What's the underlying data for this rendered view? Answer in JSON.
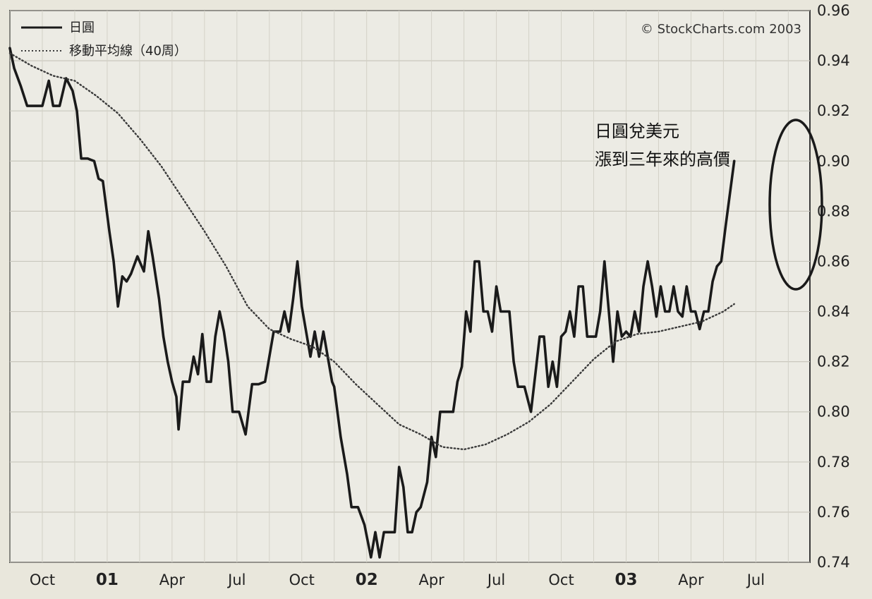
{
  "chart_data": {
    "type": "line",
    "copyright": "© StockCharts.com 2003",
    "ylim": [
      0.74,
      0.96
    ],
    "y_ticks": [
      "0.96",
      "0.94",
      "0.92",
      "0.90",
      "0.88",
      "0.86",
      "0.84",
      "0.82",
      "0.80",
      "0.78",
      "0.76",
      "0.74"
    ],
    "x_ticks": [
      {
        "label": "Oct",
        "x": 1.5,
        "bold": false
      },
      {
        "label": "01",
        "x": 4.5,
        "bold": true
      },
      {
        "label": "Apr",
        "x": 7.5,
        "bold": false
      },
      {
        "label": "Jul",
        "x": 10.5,
        "bold": false
      },
      {
        "label": "Oct",
        "x": 13.5,
        "bold": false
      },
      {
        "label": "02",
        "x": 16.5,
        "bold": true
      },
      {
        "label": "Apr",
        "x": 19.5,
        "bold": false
      },
      {
        "label": "Jul",
        "x": 22.5,
        "bold": false
      },
      {
        "label": "Oct",
        "x": 25.5,
        "bold": false
      },
      {
        "label": "03",
        "x": 28.5,
        "bold": true
      },
      {
        "label": "Apr",
        "x": 31.5,
        "bold": false
      },
      {
        "label": "Jul",
        "x": 34.5,
        "bold": false
      }
    ],
    "xlim": [
      0,
      37
    ],
    "grid": true,
    "legend": {
      "position": "top-left"
    },
    "annotation": {
      "lines": [
        "日圓兌美元",
        "漲到三年來的高價"
      ],
      "highlight": "ellipse around latest rally"
    },
    "series": [
      {
        "name": "日圓",
        "style": "solid",
        "color": "#1a1a1a",
        "points": [
          [
            0.0,
            0.945
          ],
          [
            0.2,
            0.937
          ],
          [
            0.5,
            0.93
          ],
          [
            0.8,
            0.922
          ],
          [
            1.2,
            0.922
          ],
          [
            1.5,
            0.922
          ],
          [
            1.8,
            0.932
          ],
          [
            2.0,
            0.922
          ],
          [
            2.3,
            0.922
          ],
          [
            2.6,
            0.933
          ],
          [
            2.9,
            0.928
          ],
          [
            3.1,
            0.92
          ],
          [
            3.3,
            0.901
          ],
          [
            3.6,
            0.901
          ],
          [
            3.9,
            0.9
          ],
          [
            4.1,
            0.893
          ],
          [
            4.3,
            0.892
          ],
          [
            4.6,
            0.872
          ],
          [
            4.8,
            0.86
          ],
          [
            5.0,
            0.842
          ],
          [
            5.2,
            0.854
          ],
          [
            5.4,
            0.852
          ],
          [
            5.6,
            0.855
          ],
          [
            5.9,
            0.862
          ],
          [
            6.2,
            0.856
          ],
          [
            6.4,
            0.872
          ],
          [
            6.6,
            0.862
          ],
          [
            6.9,
            0.845
          ],
          [
            7.1,
            0.83
          ],
          [
            7.3,
            0.82
          ],
          [
            7.5,
            0.812
          ],
          [
            7.7,
            0.806
          ],
          [
            7.8,
            0.793
          ],
          [
            8.0,
            0.812
          ],
          [
            8.3,
            0.812
          ],
          [
            8.5,
            0.822
          ],
          [
            8.7,
            0.815
          ],
          [
            8.9,
            0.831
          ],
          [
            9.1,
            0.812
          ],
          [
            9.3,
            0.812
          ],
          [
            9.5,
            0.83
          ],
          [
            9.7,
            0.84
          ],
          [
            9.9,
            0.832
          ],
          [
            10.1,
            0.82
          ],
          [
            10.3,
            0.8
          ],
          [
            10.6,
            0.8
          ],
          [
            10.9,
            0.791
          ],
          [
            11.2,
            0.811
          ],
          [
            11.5,
            0.811
          ],
          [
            11.8,
            0.812
          ],
          [
            12.0,
            0.822
          ],
          [
            12.2,
            0.832
          ],
          [
            12.5,
            0.832
          ],
          [
            12.7,
            0.84
          ],
          [
            12.9,
            0.832
          ],
          [
            13.1,
            0.845
          ],
          [
            13.3,
            0.86
          ],
          [
            13.5,
            0.842
          ],
          [
            13.7,
            0.832
          ],
          [
            13.9,
            0.822
          ],
          [
            14.1,
            0.832
          ],
          [
            14.3,
            0.822
          ],
          [
            14.5,
            0.832
          ],
          [
            14.7,
            0.822
          ],
          [
            14.9,
            0.812
          ],
          [
            15.0,
            0.81
          ],
          [
            15.3,
            0.79
          ],
          [
            15.6,
            0.775
          ],
          [
            15.8,
            0.762
          ],
          [
            16.1,
            0.762
          ],
          [
            16.4,
            0.755
          ],
          [
            16.7,
            0.742
          ],
          [
            16.9,
            0.752
          ],
          [
            17.1,
            0.742
          ],
          [
            17.3,
            0.752
          ],
          [
            17.6,
            0.752
          ],
          [
            17.8,
            0.752
          ],
          [
            18.0,
            0.778
          ],
          [
            18.2,
            0.77
          ],
          [
            18.4,
            0.752
          ],
          [
            18.6,
            0.752
          ],
          [
            18.8,
            0.76
          ],
          [
            19.0,
            0.762
          ],
          [
            19.3,
            0.772
          ],
          [
            19.5,
            0.79
          ],
          [
            19.7,
            0.782
          ],
          [
            19.9,
            0.8
          ],
          [
            20.1,
            0.8
          ],
          [
            20.3,
            0.8
          ],
          [
            20.5,
            0.8
          ],
          [
            20.7,
            0.812
          ],
          [
            20.9,
            0.818
          ],
          [
            21.1,
            0.84
          ],
          [
            21.3,
            0.832
          ],
          [
            21.5,
            0.86
          ],
          [
            21.7,
            0.86
          ],
          [
            21.9,
            0.84
          ],
          [
            22.1,
            0.84
          ],
          [
            22.3,
            0.832
          ],
          [
            22.5,
            0.85
          ],
          [
            22.7,
            0.84
          ],
          [
            22.9,
            0.84
          ],
          [
            23.1,
            0.84
          ],
          [
            23.3,
            0.82
          ],
          [
            23.5,
            0.81
          ],
          [
            23.8,
            0.81
          ],
          [
            24.1,
            0.8
          ],
          [
            24.3,
            0.815
          ],
          [
            24.5,
            0.83
          ],
          [
            24.7,
            0.83
          ],
          [
            24.9,
            0.81
          ],
          [
            25.1,
            0.82
          ],
          [
            25.3,
            0.81
          ],
          [
            25.5,
            0.83
          ],
          [
            25.7,
            0.832
          ],
          [
            25.9,
            0.84
          ],
          [
            26.1,
            0.83
          ],
          [
            26.3,
            0.85
          ],
          [
            26.5,
            0.85
          ],
          [
            26.7,
            0.83
          ],
          [
            26.9,
            0.83
          ],
          [
            27.1,
            0.83
          ],
          [
            27.3,
            0.84
          ],
          [
            27.5,
            0.86
          ],
          [
            27.7,
            0.84
          ],
          [
            27.9,
            0.82
          ],
          [
            28.1,
            0.84
          ],
          [
            28.3,
            0.83
          ],
          [
            28.5,
            0.832
          ],
          [
            28.7,
            0.83
          ],
          [
            28.9,
            0.84
          ],
          [
            29.1,
            0.832
          ],
          [
            29.3,
            0.85
          ],
          [
            29.5,
            0.86
          ],
          [
            29.7,
            0.85
          ],
          [
            29.9,
            0.838
          ],
          [
            30.1,
            0.85
          ],
          [
            30.3,
            0.84
          ],
          [
            30.5,
            0.84
          ],
          [
            30.7,
            0.85
          ],
          [
            30.9,
            0.84
          ],
          [
            31.1,
            0.838
          ],
          [
            31.3,
            0.85
          ],
          [
            31.5,
            0.84
          ],
          [
            31.7,
            0.84
          ],
          [
            31.9,
            0.833
          ],
          [
            32.1,
            0.84
          ],
          [
            32.3,
            0.84
          ],
          [
            32.5,
            0.852
          ],
          [
            32.7,
            0.858
          ],
          [
            32.9,
            0.86
          ],
          [
            33.1,
            0.874
          ],
          [
            33.3,
            0.887
          ],
          [
            33.5,
            0.9
          ]
        ]
      },
      {
        "name": "移動平均線（40周）",
        "style": "dotted",
        "color": "#3a3a3a",
        "points": [
          [
            0.0,
            0.943
          ],
          [
            1.0,
            0.938
          ],
          [
            2.0,
            0.934
          ],
          [
            3.0,
            0.932
          ],
          [
            4.0,
            0.926
          ],
          [
            5.0,
            0.919
          ],
          [
            6.0,
            0.909
          ],
          [
            7.0,
            0.898
          ],
          [
            8.0,
            0.885
          ],
          [
            9.0,
            0.872
          ],
          [
            10.0,
            0.858
          ],
          [
            11.0,
            0.842
          ],
          [
            12.0,
            0.833
          ],
          [
            13.0,
            0.829
          ],
          [
            14.0,
            0.826
          ],
          [
            15.0,
            0.82
          ],
          [
            16.0,
            0.811
          ],
          [
            17.0,
            0.803
          ],
          [
            18.0,
            0.795
          ],
          [
            19.0,
            0.791
          ],
          [
            20.0,
            0.786
          ],
          [
            21.0,
            0.785
          ],
          [
            22.0,
            0.787
          ],
          [
            23.0,
            0.791
          ],
          [
            24.0,
            0.796
          ],
          [
            25.0,
            0.803
          ],
          [
            26.0,
            0.812
          ],
          [
            27.0,
            0.821
          ],
          [
            28.0,
            0.828
          ],
          [
            29.0,
            0.831
          ],
          [
            30.0,
            0.832
          ],
          [
            31.0,
            0.834
          ],
          [
            32.0,
            0.836
          ],
          [
            33.0,
            0.84
          ],
          [
            33.5,
            0.843
          ]
        ]
      }
    ]
  }
}
